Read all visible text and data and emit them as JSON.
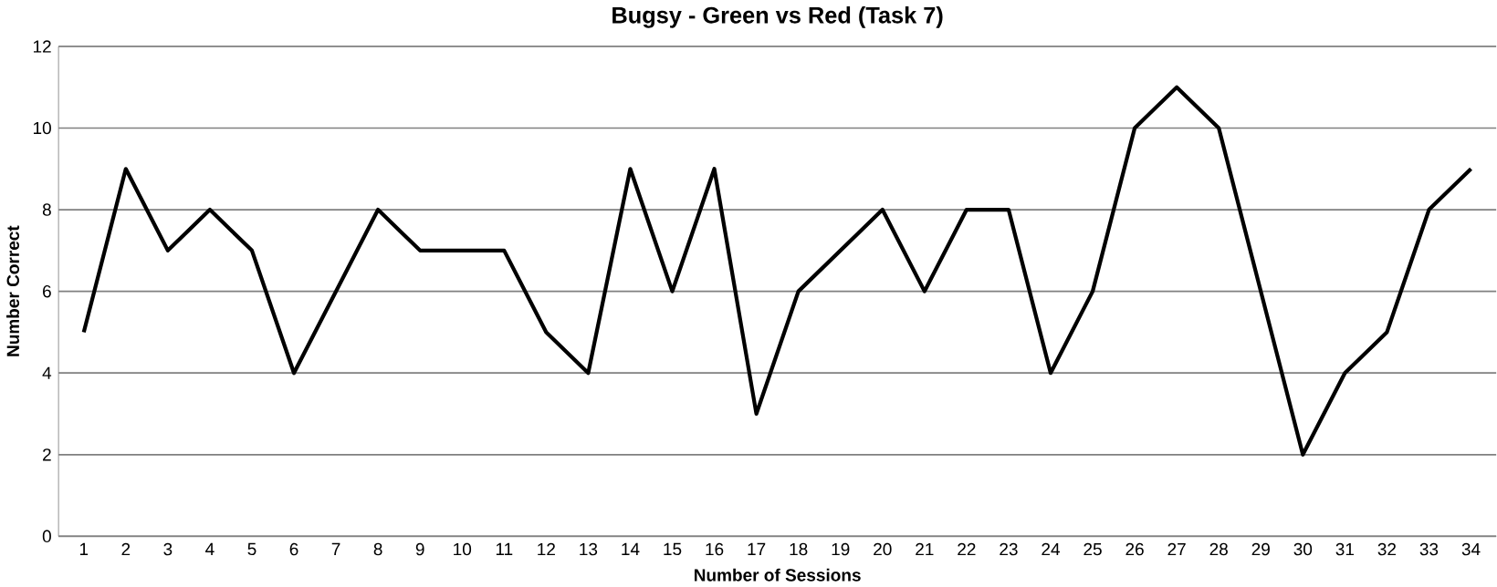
{
  "chart_data": {
    "type": "line",
    "title": "Bugsy - Green vs Red (Task 7)",
    "xlabel": "Number of Sessions",
    "ylabel": "Number Correct",
    "categories": [
      "1",
      "2",
      "3",
      "4",
      "5",
      "6",
      "7",
      "8",
      "9",
      "10",
      "11",
      "12",
      "13",
      "14",
      "15",
      "16",
      "17",
      "18",
      "19",
      "20",
      "21",
      "22",
      "23",
      "24",
      "25",
      "26",
      "27",
      "28",
      "29",
      "30",
      "31",
      "32",
      "33",
      "34"
    ],
    "series": [
      {
        "color": "#000000",
        "values": [
          5,
          9,
          7,
          8,
          7,
          4,
          6,
          8,
          7,
          7,
          7,
          5,
          4,
          9,
          6,
          9,
          3,
          6,
          7,
          8,
          6,
          8,
          8,
          4,
          6,
          10,
          11,
          10,
          6,
          2,
          4,
          5,
          8,
          9
        ]
      }
    ],
    "ylim": [
      0,
      12
    ],
    "yticks": [
      0,
      2,
      4,
      6,
      8,
      10,
      12
    ],
    "grid": "y",
    "marker": "none",
    "line_style": "solid"
  }
}
